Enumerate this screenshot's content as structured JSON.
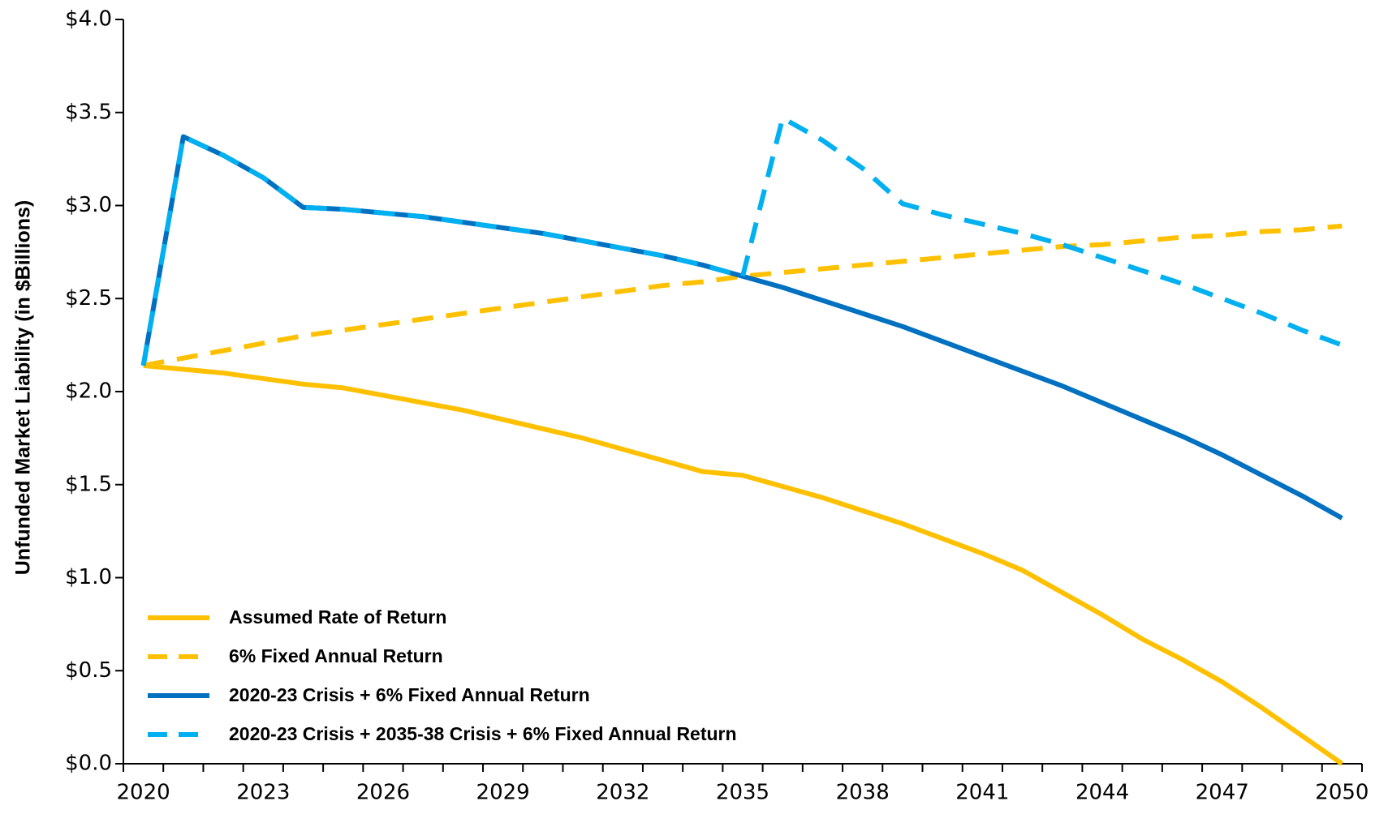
{
  "chart_data": {
    "type": "line",
    "y_label": "Unfunded Market Liability (in $Billions)",
    "categories": [
      "2020",
      null,
      null,
      "2023",
      null,
      null,
      "2026",
      null,
      null,
      "2029",
      null,
      null,
      "2032",
      null,
      null,
      "2035",
      null,
      null,
      "2038",
      null,
      null,
      "2041",
      null,
      null,
      "2044",
      null,
      null,
      "2047",
      null,
      null,
      "2050"
    ],
    "ylim": [
      0,
      4
    ],
    "yticks": [
      {
        "value": 0,
        "label": "$0.0"
      },
      {
        "value": 0.5,
        "label": "$0.5"
      },
      {
        "value": 1,
        "label": "$1.0"
      },
      {
        "value": 1.5,
        "label": "$1.5"
      },
      {
        "value": 2,
        "label": "$2.0"
      },
      {
        "value": 2.5,
        "label": "$2.5"
      },
      {
        "value": 3,
        "label": "$3.0"
      },
      {
        "value": 3.5,
        "label": "$3.5"
      },
      {
        "value": 4,
        "label": "$4.0"
      }
    ],
    "grid": false,
    "legend": "lower left",
    "series": [
      {
        "name": "Assumed Rate of Return",
        "color": "#FFC000",
        "dashed": false,
        "values": [
          2.14,
          2.12,
          2.1,
          2.07,
          2.04,
          2.02,
          1.98,
          1.94,
          1.9,
          1.85,
          1.8,
          1.75,
          1.69,
          1.63,
          1.57,
          1.55,
          1.49,
          1.43,
          1.36,
          1.29,
          1.21,
          1.13,
          1.04,
          0.92,
          0.8,
          0.67,
          0.56,
          0.44,
          0.3,
          0.15,
          0.0
        ]
      },
      {
        "name": "6% Fixed Annual Return",
        "color": "#FFC000",
        "dashed": true,
        "values": [
          2.14,
          2.18,
          2.22,
          2.26,
          2.3,
          2.33,
          2.36,
          2.39,
          2.42,
          2.45,
          2.48,
          2.51,
          2.54,
          2.57,
          2.59,
          2.62,
          2.64,
          2.66,
          2.68,
          2.7,
          2.72,
          2.74,
          2.76,
          2.78,
          2.79,
          2.81,
          2.83,
          2.84,
          2.86,
          2.87,
          2.89
        ]
      },
      {
        "name": "2020-23 Crisis + 6% Fixed Annual Return",
        "color": "#0070C0",
        "dashed": false,
        "values": [
          2.14,
          3.37,
          3.27,
          3.15,
          2.99,
          2.98,
          2.96,
          2.94,
          2.91,
          2.88,
          2.85,
          2.81,
          2.77,
          2.73,
          2.68,
          2.62,
          2.56,
          2.49,
          2.42,
          2.35,
          2.27,
          2.19,
          2.11,
          2.03,
          1.94,
          1.85,
          1.76,
          1.66,
          1.55,
          1.44,
          1.32
        ]
      },
      {
        "name": "2020-23 Crisis + 2035-38 Crisis + 6% Fixed Annual Return",
        "color": "#00B0F0",
        "dashed": true,
        "values": [
          2.14,
          3.37,
          3.27,
          3.15,
          2.99,
          2.98,
          2.96,
          2.94,
          2.91,
          2.88,
          2.85,
          2.81,
          2.77,
          2.73,
          2.68,
          2.62,
          3.47,
          3.35,
          3.2,
          3.01,
          2.95,
          2.9,
          2.85,
          2.79,
          2.72,
          2.65,
          2.58,
          2.5,
          2.42,
          2.33,
          2.25
        ]
      }
    ]
  }
}
